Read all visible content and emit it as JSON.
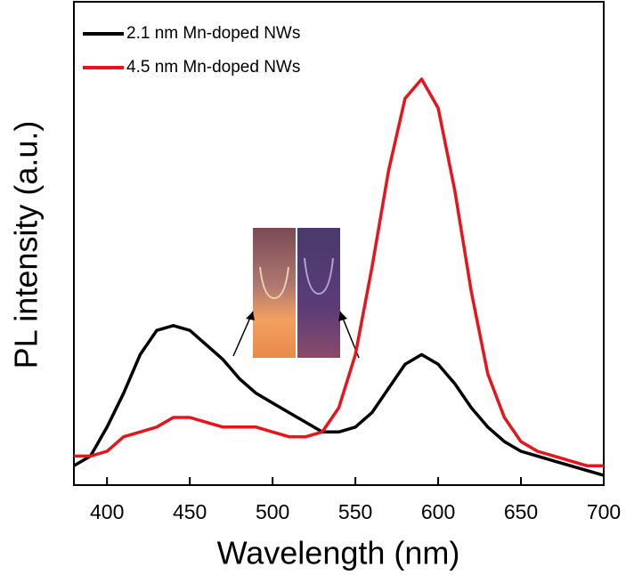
{
  "chart_data": {
    "type": "line",
    "xlabel": "Wavelength (nm)",
    "ylabel": "PL intensity (a.u.)",
    "x": [
      380,
      390,
      400,
      410,
      420,
      430,
      440,
      450,
      460,
      470,
      480,
      490,
      500,
      510,
      520,
      530,
      540,
      550,
      560,
      570,
      580,
      590,
      600,
      610,
      620,
      630,
      640,
      650,
      660,
      670,
      680,
      690,
      700
    ],
    "series": [
      {
        "name": "2.1 nm Mn-doped NWs",
        "color": "#000000",
        "values": [
          0.04,
          0.06,
          0.12,
          0.19,
          0.27,
          0.32,
          0.33,
          0.32,
          0.29,
          0.26,
          0.22,
          0.19,
          0.17,
          0.15,
          0.13,
          0.11,
          0.11,
          0.12,
          0.15,
          0.2,
          0.25,
          0.27,
          0.25,
          0.21,
          0.16,
          0.12,
          0.09,
          0.07,
          0.06,
          0.05,
          0.04,
          0.03,
          0.02
        ]
      },
      {
        "name": "4.5 nm Mn-doped NWs",
        "color": "#e8141b",
        "values": [
          0.06,
          0.06,
          0.07,
          0.1,
          0.11,
          0.12,
          0.14,
          0.14,
          0.13,
          0.12,
          0.12,
          0.12,
          0.11,
          0.1,
          0.1,
          0.11,
          0.16,
          0.27,
          0.45,
          0.65,
          0.8,
          0.84,
          0.78,
          0.61,
          0.4,
          0.23,
          0.14,
          0.09,
          0.07,
          0.06,
          0.05,
          0.04,
          0.04
        ]
      }
    ],
    "xlim": [
      380,
      700
    ],
    "xticks": [
      400,
      450,
      500,
      550,
      600,
      650,
      700
    ],
    "ylim": [
      0,
      1
    ],
    "legend": "upper left"
  }
}
